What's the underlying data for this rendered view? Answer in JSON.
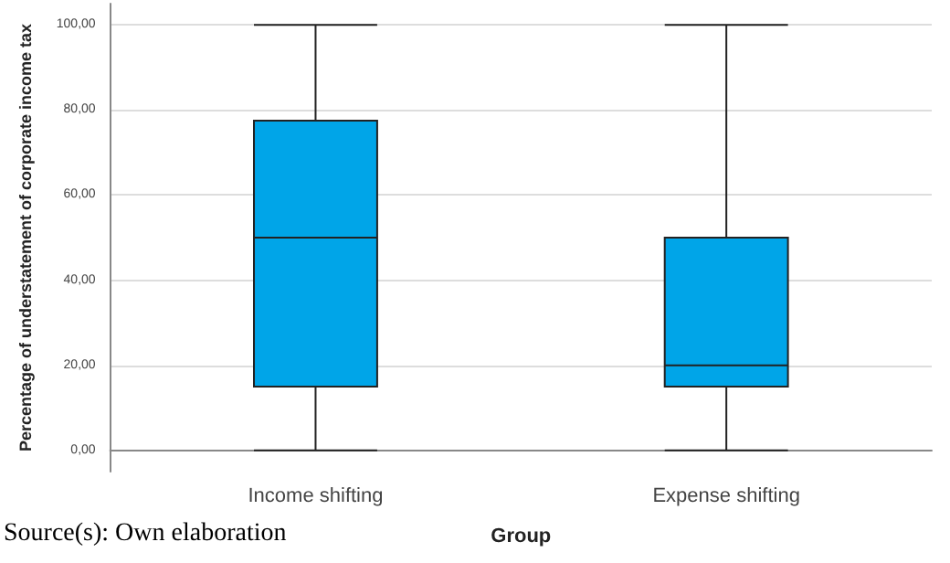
{
  "chart_data": {
    "type": "box",
    "xlabel": "Group",
    "ylabel": "Percentage of understatement of corporate income tax",
    "annotations": [
      "Source(s): Own elaboration"
    ],
    "categories": [
      "Income shifting",
      "Expense shifting"
    ],
    "color": "#00a5e8",
    "boxes": [
      {
        "low": 0,
        "q1": 15,
        "median": 50,
        "q3": 77.5,
        "high": 100
      },
      {
        "low": 0,
        "q1": 15,
        "median": 20,
        "q3": 50,
        "high": 100
      }
    ],
    "ylim": [
      -5,
      105
    ],
    "yticks": [
      {
        "value": 0,
        "label": "0,00"
      },
      {
        "value": 20,
        "label": "20,00"
      },
      {
        "value": 40,
        "label": "40,00"
      },
      {
        "value": 60,
        "label": "60,00"
      },
      {
        "value": 80,
        "label": "80,00"
      },
      {
        "value": 100,
        "label": "100,00"
      }
    ],
    "grid": "y"
  }
}
